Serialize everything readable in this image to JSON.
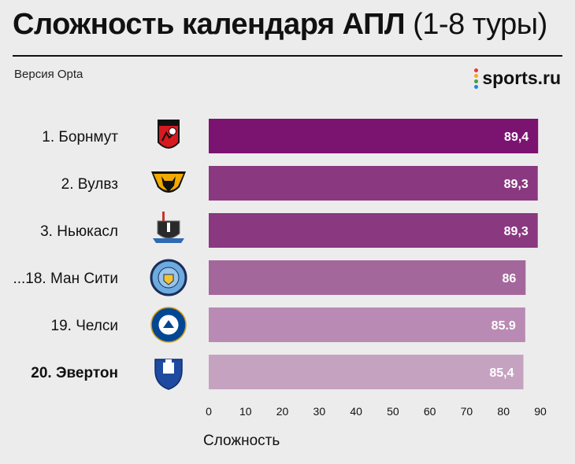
{
  "header": {
    "title_main": "Сложность календаря АПЛ",
    "title_suffix": "(1-8 туры)",
    "subtitle": "Версия Opta",
    "brand": "sports.ru",
    "brand_dot_colors": [
      "#e53935",
      "#f9a825",
      "#43a047",
      "#1e88e5"
    ]
  },
  "chart_data": {
    "type": "bar",
    "orientation": "horizontal",
    "title": "Сложность календаря АПЛ (1-8 туры)",
    "subtitle": "Версия Opta",
    "xlabel": "Сложность",
    "ylabel": "",
    "xlim": [
      0,
      90
    ],
    "xticks": [
      0,
      10,
      20,
      30,
      40,
      50,
      60,
      70,
      80,
      90
    ],
    "grid": false,
    "categories": [
      "1. Борнмут",
      "2. Вулвз",
      "3. Ньюкасл",
      "...18. Ман Сити",
      "19. Челси",
      "20. Эвертон"
    ],
    "values": [
      89.4,
      89.3,
      89.3,
      86,
      85.9,
      85.4
    ],
    "value_labels": [
      "89,4",
      "89,3",
      "89,3",
      "86",
      "85.9",
      "85,4"
    ],
    "bold_categories": [
      5
    ],
    "bar_colors": [
      "#7b1470",
      "#8a3880",
      "#8a3880",
      "#a4679c",
      "#b98ab4",
      "#c6a2c1"
    ],
    "club_icons": [
      "bournemouth-crest-icon",
      "wolves-crest-icon",
      "newcastle-crest-icon",
      "man-city-crest-icon",
      "chelsea-crest-icon",
      "everton-crest-icon"
    ]
  }
}
